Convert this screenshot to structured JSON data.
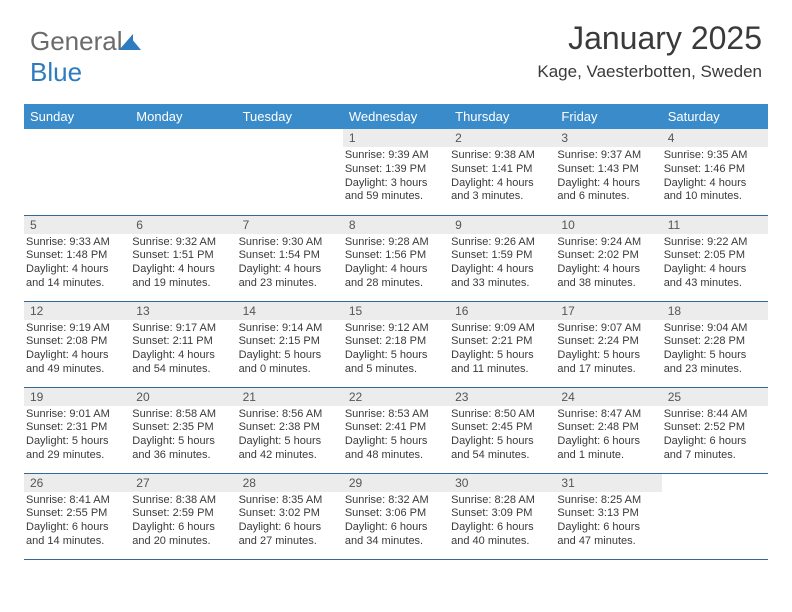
{
  "brand": {
    "part1": "General",
    "part2": "Blue"
  },
  "title": "January 2025",
  "subtitle": "Kage, Vaesterbotten, Sweden",
  "theme": {
    "header_bg": "#3a8bc9",
    "header_fg": "#ffffff",
    "daynum_bg": "#ececec",
    "rule_color": "#34689a",
    "text_color": "#3a3a3a",
    "body_fontsize": 11,
    "title_fontsize": 32,
    "subtitle_fontsize": 17
  },
  "weekdays": [
    "Sunday",
    "Monday",
    "Tuesday",
    "Wednesday",
    "Thursday",
    "Friday",
    "Saturday"
  ],
  "weeks": [
    [
      null,
      null,
      null,
      {
        "n": "1",
        "sr": "Sunrise: 9:39 AM",
        "ss": "Sunset: 1:39 PM",
        "d1": "Daylight: 3 hours",
        "d2": "and 59 minutes."
      },
      {
        "n": "2",
        "sr": "Sunrise: 9:38 AM",
        "ss": "Sunset: 1:41 PM",
        "d1": "Daylight: 4 hours",
        "d2": "and 3 minutes."
      },
      {
        "n": "3",
        "sr": "Sunrise: 9:37 AM",
        "ss": "Sunset: 1:43 PM",
        "d1": "Daylight: 4 hours",
        "d2": "and 6 minutes."
      },
      {
        "n": "4",
        "sr": "Sunrise: 9:35 AM",
        "ss": "Sunset: 1:46 PM",
        "d1": "Daylight: 4 hours",
        "d2": "and 10 minutes."
      }
    ],
    [
      {
        "n": "5",
        "sr": "Sunrise: 9:33 AM",
        "ss": "Sunset: 1:48 PM",
        "d1": "Daylight: 4 hours",
        "d2": "and 14 minutes."
      },
      {
        "n": "6",
        "sr": "Sunrise: 9:32 AM",
        "ss": "Sunset: 1:51 PM",
        "d1": "Daylight: 4 hours",
        "d2": "and 19 minutes."
      },
      {
        "n": "7",
        "sr": "Sunrise: 9:30 AM",
        "ss": "Sunset: 1:54 PM",
        "d1": "Daylight: 4 hours",
        "d2": "and 23 minutes."
      },
      {
        "n": "8",
        "sr": "Sunrise: 9:28 AM",
        "ss": "Sunset: 1:56 PM",
        "d1": "Daylight: 4 hours",
        "d2": "and 28 minutes."
      },
      {
        "n": "9",
        "sr": "Sunrise: 9:26 AM",
        "ss": "Sunset: 1:59 PM",
        "d1": "Daylight: 4 hours",
        "d2": "and 33 minutes."
      },
      {
        "n": "10",
        "sr": "Sunrise: 9:24 AM",
        "ss": "Sunset: 2:02 PM",
        "d1": "Daylight: 4 hours",
        "d2": "and 38 minutes."
      },
      {
        "n": "11",
        "sr": "Sunrise: 9:22 AM",
        "ss": "Sunset: 2:05 PM",
        "d1": "Daylight: 4 hours",
        "d2": "and 43 minutes."
      }
    ],
    [
      {
        "n": "12",
        "sr": "Sunrise: 9:19 AM",
        "ss": "Sunset: 2:08 PM",
        "d1": "Daylight: 4 hours",
        "d2": "and 49 minutes."
      },
      {
        "n": "13",
        "sr": "Sunrise: 9:17 AM",
        "ss": "Sunset: 2:11 PM",
        "d1": "Daylight: 4 hours",
        "d2": "and 54 minutes."
      },
      {
        "n": "14",
        "sr": "Sunrise: 9:14 AM",
        "ss": "Sunset: 2:15 PM",
        "d1": "Daylight: 5 hours",
        "d2": "and 0 minutes."
      },
      {
        "n": "15",
        "sr": "Sunrise: 9:12 AM",
        "ss": "Sunset: 2:18 PM",
        "d1": "Daylight: 5 hours",
        "d2": "and 5 minutes."
      },
      {
        "n": "16",
        "sr": "Sunrise: 9:09 AM",
        "ss": "Sunset: 2:21 PM",
        "d1": "Daylight: 5 hours",
        "d2": "and 11 minutes."
      },
      {
        "n": "17",
        "sr": "Sunrise: 9:07 AM",
        "ss": "Sunset: 2:24 PM",
        "d1": "Daylight: 5 hours",
        "d2": "and 17 minutes."
      },
      {
        "n": "18",
        "sr": "Sunrise: 9:04 AM",
        "ss": "Sunset: 2:28 PM",
        "d1": "Daylight: 5 hours",
        "d2": "and 23 minutes."
      }
    ],
    [
      {
        "n": "19",
        "sr": "Sunrise: 9:01 AM",
        "ss": "Sunset: 2:31 PM",
        "d1": "Daylight: 5 hours",
        "d2": "and 29 minutes."
      },
      {
        "n": "20",
        "sr": "Sunrise: 8:58 AM",
        "ss": "Sunset: 2:35 PM",
        "d1": "Daylight: 5 hours",
        "d2": "and 36 minutes."
      },
      {
        "n": "21",
        "sr": "Sunrise: 8:56 AM",
        "ss": "Sunset: 2:38 PM",
        "d1": "Daylight: 5 hours",
        "d2": "and 42 minutes."
      },
      {
        "n": "22",
        "sr": "Sunrise: 8:53 AM",
        "ss": "Sunset: 2:41 PM",
        "d1": "Daylight: 5 hours",
        "d2": "and 48 minutes."
      },
      {
        "n": "23",
        "sr": "Sunrise: 8:50 AM",
        "ss": "Sunset: 2:45 PM",
        "d1": "Daylight: 5 hours",
        "d2": "and 54 minutes."
      },
      {
        "n": "24",
        "sr": "Sunrise: 8:47 AM",
        "ss": "Sunset: 2:48 PM",
        "d1": "Daylight: 6 hours",
        "d2": "and 1 minute."
      },
      {
        "n": "25",
        "sr": "Sunrise: 8:44 AM",
        "ss": "Sunset: 2:52 PM",
        "d1": "Daylight: 6 hours",
        "d2": "and 7 minutes."
      }
    ],
    [
      {
        "n": "26",
        "sr": "Sunrise: 8:41 AM",
        "ss": "Sunset: 2:55 PM",
        "d1": "Daylight: 6 hours",
        "d2": "and 14 minutes."
      },
      {
        "n": "27",
        "sr": "Sunrise: 8:38 AM",
        "ss": "Sunset: 2:59 PM",
        "d1": "Daylight: 6 hours",
        "d2": "and 20 minutes."
      },
      {
        "n": "28",
        "sr": "Sunrise: 8:35 AM",
        "ss": "Sunset: 3:02 PM",
        "d1": "Daylight: 6 hours",
        "d2": "and 27 minutes."
      },
      {
        "n": "29",
        "sr": "Sunrise: 8:32 AM",
        "ss": "Sunset: 3:06 PM",
        "d1": "Daylight: 6 hours",
        "d2": "and 34 minutes."
      },
      {
        "n": "30",
        "sr": "Sunrise: 8:28 AM",
        "ss": "Sunset: 3:09 PM",
        "d1": "Daylight: 6 hours",
        "d2": "and 40 minutes."
      },
      {
        "n": "31",
        "sr": "Sunrise: 8:25 AM",
        "ss": "Sunset: 3:13 PM",
        "d1": "Daylight: 6 hours",
        "d2": "and 47 minutes."
      },
      null
    ]
  ]
}
